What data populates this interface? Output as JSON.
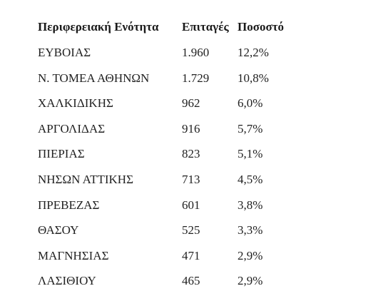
{
  "table": {
    "header": [
      "Περιφερειακή Ενότητα",
      "Επιταγές",
      "Ποσοστό"
    ],
    "rows": [
      [
        "ΕΥΒΟΙΑΣ",
        "1.960",
        "12,2%"
      ],
      [
        "Ν. ΤΟΜΕΑ ΑΘΗΝΩΝ",
        "1.729",
        "10,8%"
      ],
      [
        "ΧΑΛΚΙΔΙΚΗΣ",
        "962",
        "6,0%"
      ],
      [
        "ΑΡΓΟΛΙΔΑΣ",
        "916",
        "5,7%"
      ],
      [
        "ΠΙΕΡΙΑΣ",
        "823",
        "5,1%"
      ],
      [
        "ΝΗΣΩΝ ΑΤΤΙΚΗΣ",
        "713",
        "4,5%"
      ],
      [
        "ΠΡΕΒΕΖΑΣ",
        "601",
        "3,8%"
      ],
      [
        "ΘΑΣΟΥ",
        "525",
        "3,3%"
      ],
      [
        "ΜΑΓΝΗΣΙΑΣ",
        "471",
        "2,9%"
      ],
      [
        "ΛΑΣΙΘΙΟΥ",
        "465",
        "2,9%"
      ]
    ]
  }
}
